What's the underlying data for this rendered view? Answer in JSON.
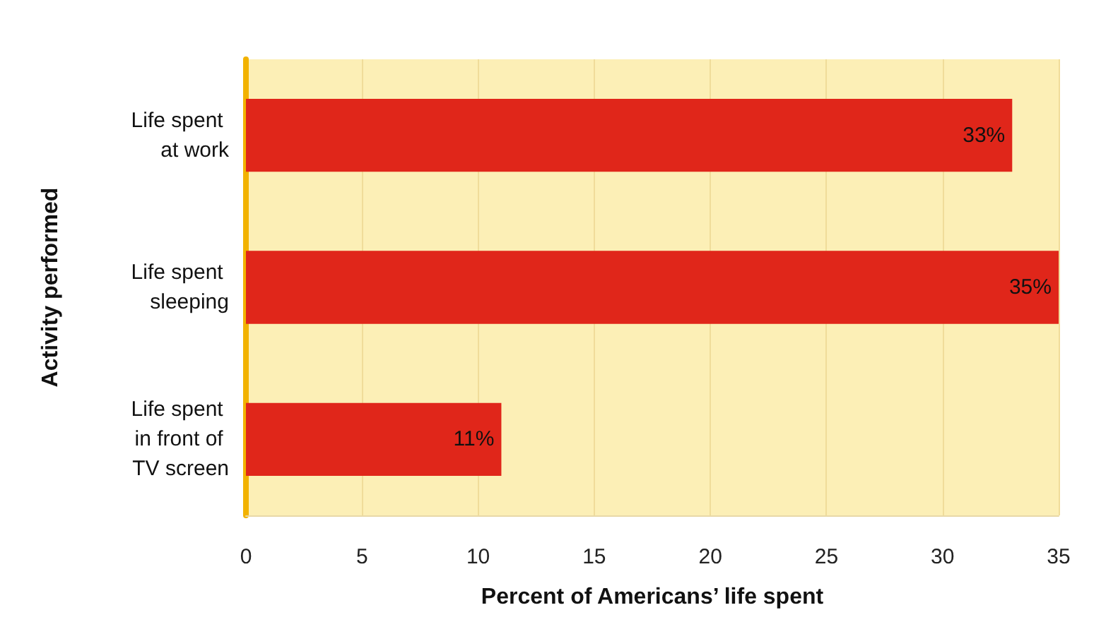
{
  "chart_data": {
    "type": "bar",
    "orientation": "horizontal",
    "categories": [
      "Life spent at work",
      "Life spent sleeping",
      "Life spent in front of TV screen"
    ],
    "values": [
      33,
      35,
      11
    ],
    "value_labels": [
      "33%",
      "35%",
      "11%"
    ],
    "color": "#e0261a",
    "xlabel": "Percent of Americans’ life spent",
    "ylabel": "Activity performed",
    "xlim": [
      0,
      35
    ],
    "xticks": [
      0,
      5,
      10,
      15,
      20,
      25,
      30,
      35
    ],
    "grid": "x"
  }
}
